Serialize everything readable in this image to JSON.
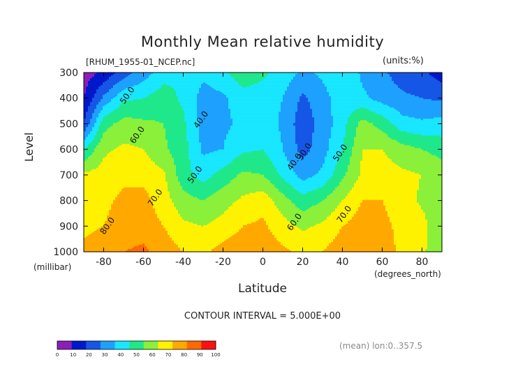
{
  "chart_data": {
    "type": "heatmap",
    "title": "Monthly Mean relative humidity",
    "subtitle_left": "[RHUM_1955-01_NCEP.nc]",
    "subtitle_right": "(units:%)",
    "xlabel": "Latitude",
    "xunits": "(degrees_north)",
    "ylabel": "Level",
    "yunits": "(millibar)",
    "xlim": [
      -90,
      90
    ],
    "ylim": [
      1000,
      300
    ],
    "x_ticks": [
      -80,
      -60,
      -40,
      -20,
      0,
      20,
      40,
      60,
      80
    ],
    "y_ticks": [
      300,
      400,
      500,
      600,
      700,
      800,
      900,
      1000
    ],
    "contour_interval_text": "CONTOUR INTERVAL = 5.000E+00",
    "footnote": "(mean) lon:0..357.5",
    "colorbar": {
      "levels": [
        0,
        10,
        20,
        30,
        40,
        50,
        60,
        70,
        80,
        90,
        100
      ],
      "colors": [
        "#8a1fb8",
        "#0018cc",
        "#1656e6",
        "#1ea0ff",
        "#19e6ff",
        "#1fe88a",
        "#8af03a",
        "#fff200",
        "#ffa800",
        "#ff6a00",
        "#ff1010"
      ]
    },
    "contour_labels": [
      {
        "text": "50.0",
        "lat": -67,
        "lev": 395
      },
      {
        "text": "40.0",
        "lat": -30,
        "lev": 490
      },
      {
        "text": "60.0",
        "lat": -62,
        "lev": 550
      },
      {
        "text": "50.0",
        "lat": -33,
        "lev": 705
      },
      {
        "text": "70.0",
        "lat": -53,
        "lev": 795
      },
      {
        "text": "80.0",
        "lat": -77,
        "lev": 905
      },
      {
        "text": "30.0",
        "lat": 22,
        "lev": 615
      },
      {
        "text": "40.0",
        "lat": 17,
        "lev": 655
      },
      {
        "text": "50.0",
        "lat": 40,
        "lev": 620
      },
      {
        "text": "60.0",
        "lat": 17,
        "lev": 890
      },
      {
        "text": "70.0",
        "lat": 42,
        "lev": 860
      }
    ],
    "grid": {
      "lats": [
        -90,
        -80,
        -70,
        -60,
        -50,
        -40,
        -30,
        -20,
        -10,
        0,
        10,
        20,
        30,
        40,
        50,
        60,
        70,
        80,
        90
      ],
      "levels": [
        300,
        400,
        500,
        600,
        700,
        800,
        900,
        1000
      ],
      "values": [
        [
          5,
          12,
          25,
          35,
          46,
          49,
          42,
          48,
          56,
          52,
          46,
          38,
          42,
          50,
          38,
          32,
          25,
          22,
          15
        ],
        [
          10,
          32,
          48,
          50,
          55,
          48,
          36,
          38,
          46,
          45,
          40,
          28,
          36,
          46,
          42,
          36,
          32,
          30,
          28
        ],
        [
          20,
          56,
          64,
          62,
          60,
          52,
          36,
          38,
          42,
          46,
          38,
          24,
          34,
          46,
          64,
          56,
          44,
          42,
          44
        ],
        [
          50,
          68,
          72,
          70,
          62,
          54,
          38,
          40,
          48,
          50,
          40,
          26,
          36,
          50,
          70,
          70,
          64,
          60,
          56
        ],
        [
          72,
          74,
          78,
          76,
          72,
          54,
          46,
          54,
          62,
          60,
          48,
          36,
          42,
          58,
          72,
          75,
          72,
          70,
          66
        ],
        [
          76,
          78,
          82,
          84,
          74,
          64,
          60,
          66,
          72,
          76,
          64,
          54,
          60,
          70,
          80,
          80,
          76,
          68,
          64
        ],
        [
          78,
          80,
          84,
          86,
          80,
          72,
          70,
          74,
          80,
          82,
          74,
          68,
          72,
          80,
          85,
          82,
          78,
          74,
          60
        ],
        [
          82,
          86,
          90,
          92,
          86,
          80,
          78,
          84,
          86,
          86,
          82,
          78,
          80,
          86,
          88,
          84,
          78,
          72,
          62
        ]
      ]
    }
  }
}
